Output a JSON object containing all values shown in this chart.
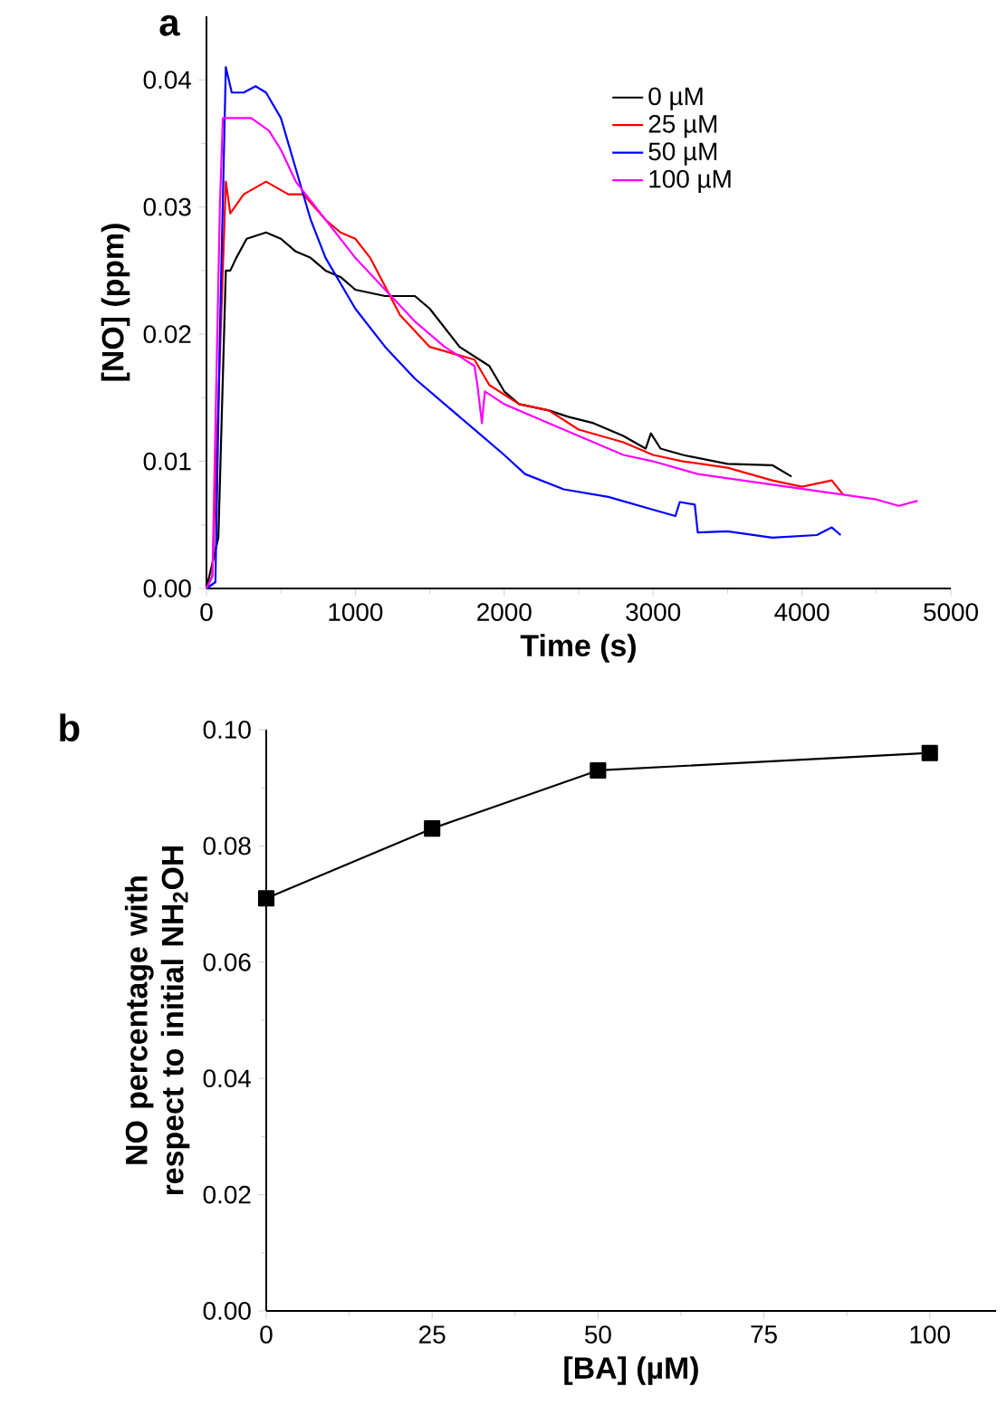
{
  "chart_data": [
    {
      "type": "line",
      "title": "a",
      "xlabel": "Time (s)",
      "ylabel": "[NO] (ppm)",
      "xlim": [
        0,
        5000
      ],
      "ylim": [
        0,
        0.045
      ],
      "xticks": [
        0,
        1000,
        2000,
        3000,
        4000,
        5000
      ],
      "yticks": [
        {
          "value": 0,
          "label": "0.00"
        },
        {
          "value": 0.01,
          "label": "0.01"
        },
        {
          "value": 0.02,
          "label": "0.02"
        },
        {
          "value": 0.03,
          "label": "0.03"
        },
        {
          "value": 0.04,
          "label": "0.04"
        }
      ],
      "legend": "top right",
      "marker": "none",
      "line_style": "solid",
      "grid": false,
      "series": [
        {
          "name": "0 µM",
          "color": "#000000",
          "x": [
            0,
            80,
            130,
            160,
            200,
            270,
            400,
            500,
            600,
            700,
            800,
            900,
            1000,
            1200,
            1400,
            1500,
            1700,
            1900,
            2000,
            2100,
            2300,
            2430,
            2600,
            2800,
            2950,
            2985,
            3050,
            3200,
            3500,
            3800,
            3930
          ],
          "values": [
            0,
            0.004,
            0.025,
            0.025,
            0.026,
            0.0275,
            0.028,
            0.0275,
            0.0265,
            0.026,
            0.025,
            0.0245,
            0.0235,
            0.023,
            0.023,
            0.022,
            0.019,
            0.0175,
            0.0155,
            0.0145,
            0.014,
            0.0135,
            0.013,
            0.012,
            0.011,
            0.0122,
            0.011,
            0.0105,
            0.0098,
            0.0097,
            0.0088
          ]
        },
        {
          "name": "25 µM",
          "color": "#ff0000",
          "x": [
            0,
            40,
            130,
            160,
            250,
            400,
            550,
            650,
            800,
            900,
            1000,
            1100,
            1300,
            1500,
            1800,
            1900,
            2100,
            2300,
            2500,
            2800,
            3000,
            3200,
            3500,
            3800,
            4000,
            4200,
            4276
          ],
          "values": [
            0,
            0.001,
            0.032,
            0.0295,
            0.031,
            0.032,
            0.031,
            0.031,
            0.029,
            0.028,
            0.0275,
            0.026,
            0.0215,
            0.019,
            0.018,
            0.016,
            0.0145,
            0.014,
            0.0125,
            0.0115,
            0.0105,
            0.01,
            0.0095,
            0.0085,
            0.008,
            0.0085,
            0.0074
          ]
        },
        {
          "name": "50 µM",
          "color": "#0000ff",
          "x": [
            0,
            60,
            90,
            130,
            170,
            250,
            330,
            400,
            500,
            600,
            700,
            800,
            1000,
            1200,
            1400,
            1600,
            1800,
            2000,
            2140,
            2400,
            2700,
            3000,
            3150,
            3179,
            3280,
            3300,
            3500,
            3800,
            4100,
            4200,
            4260
          ],
          "values": [
            0,
            0.0005,
            0.02,
            0.041,
            0.039,
            0.039,
            0.0395,
            0.039,
            0.037,
            0.033,
            0.029,
            0.026,
            0.022,
            0.019,
            0.0165,
            0.0145,
            0.0125,
            0.0105,
            0.009,
            0.0078,
            0.0072,
            0.0062,
            0.0057,
            0.0068,
            0.0066,
            0.0044,
            0.0045,
            0.004,
            0.0042,
            0.0048,
            0.0042
          ]
        },
        {
          "name": "100 µM",
          "color": "#ff00ff",
          "x": [
            0,
            40,
            90,
            110,
            200,
            300,
            420,
            500,
            600,
            700,
            800,
            1000,
            1200,
            1400,
            1600,
            1800,
            1820,
            1850,
            1870,
            2000,
            2200,
            2500,
            2800,
            3000,
            3300,
            3600,
            3900,
            4200,
            4500,
            4650,
            4777
          ],
          "values": [
            0,
            0.001,
            0.03,
            0.037,
            0.037,
            0.037,
            0.036,
            0.0345,
            0.032,
            0.0305,
            0.029,
            0.026,
            0.0235,
            0.021,
            0.019,
            0.0175,
            0.016,
            0.013,
            0.0155,
            0.0145,
            0.0135,
            0.012,
            0.0105,
            0.01,
            0.009,
            0.0085,
            0.008,
            0.0075,
            0.007,
            0.0065,
            0.0069
          ]
        }
      ]
    },
    {
      "type": "line",
      "title": "b",
      "xlabel": "[BA] (µM)",
      "ylabel": "NO percentage with respect to initial NH$_{2}$OH",
      "xlim": [
        0,
        110
      ],
      "ylim": [
        0,
        0.1
      ],
      "xticks": [
        0,
        25,
        50,
        75,
        100
      ],
      "yticks": [
        {
          "value": 0,
          "label": "0.00"
        },
        {
          "value": 0.02,
          "label": "0.02"
        },
        {
          "value": 0.04,
          "label": "0.04"
        },
        {
          "value": 0.06,
          "label": "0.06"
        },
        {
          "value": 0.08,
          "label": "0.08"
        },
        {
          "value": 0.1,
          "label": "0.10"
        }
      ],
      "marker": "square",
      "line_style": "solid",
      "grid": false,
      "legend": false,
      "series": [
        {
          "color": "#000000",
          "x": [
            0,
            25,
            50,
            100
          ],
          "values": [
            0.071,
            0.083,
            0.093,
            0.096
          ]
        }
      ]
    }
  ]
}
